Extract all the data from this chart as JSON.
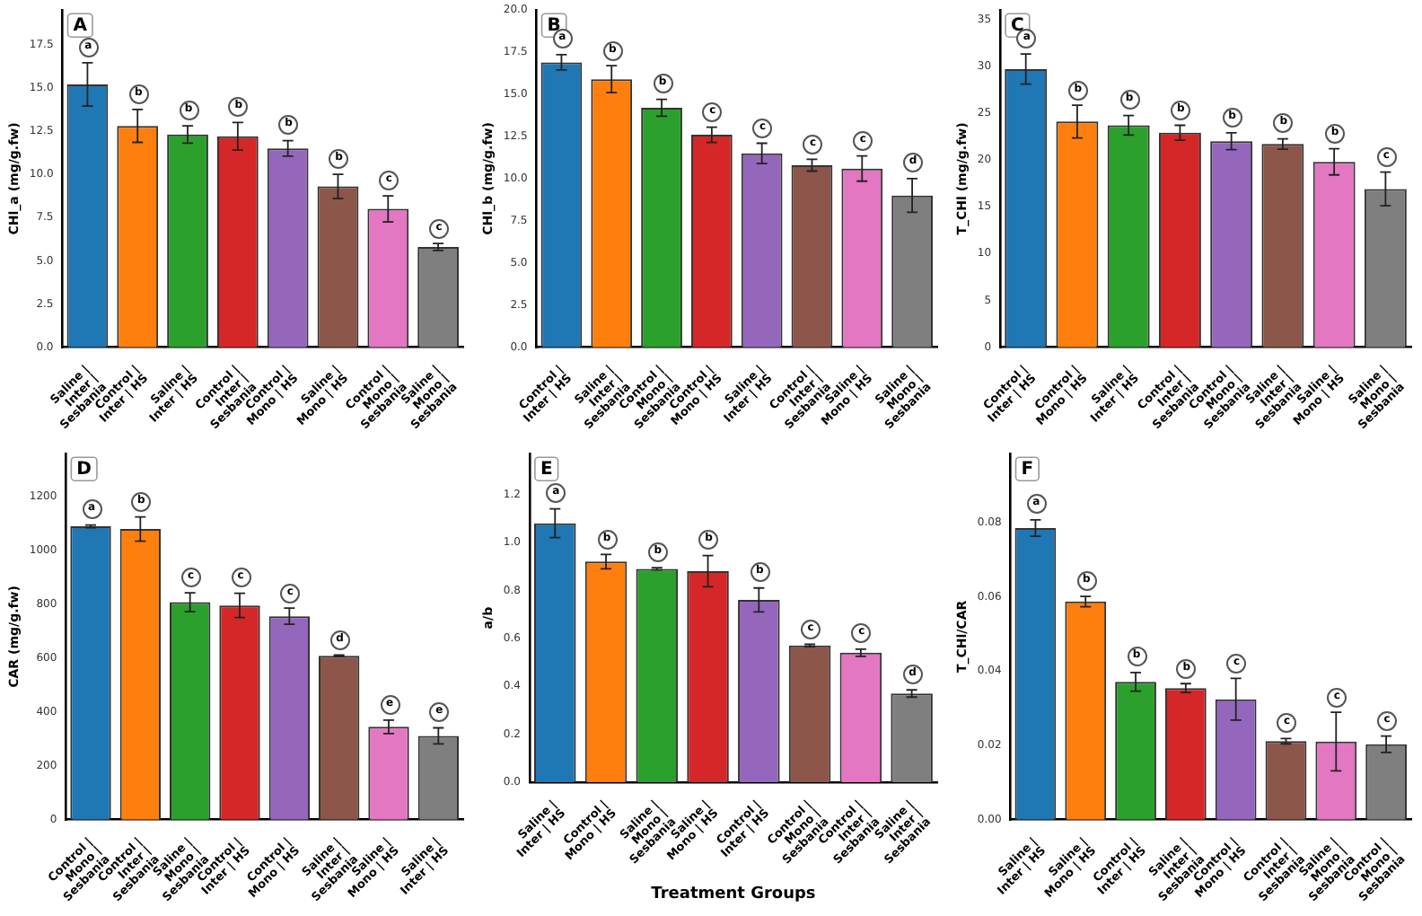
{
  "chart_data": [
    {
      "type": "bar",
      "title": "A",
      "ylabel": "CHl_a (mg/g.fw)",
      "categories": [
        "Saline | Inter | Sesbania",
        "Control | Inter | HS",
        "Saline | Inter | HS",
        "Control | Inter | Sesbania",
        "Control | Mono | HS",
        "Saline | Mono | HS",
        "Control | Mono | Sesbania",
        "Saline | Mono | Sesbania"
      ],
      "values": [
        15.2,
        12.8,
        12.3,
        12.2,
        11.5,
        9.3,
        8.0,
        5.8
      ],
      "errors": [
        1.25,
        0.95,
        0.5,
        0.8,
        0.45,
        0.7,
        0.75,
        0.2
      ],
      "colors": [
        "#1f77b4",
        "#ff7f0e",
        "#2ca02c",
        "#d62728",
        "#9467bd",
        "#8c564b",
        "#e377c2",
        "#7f7f7f"
      ],
      "ylim": [
        0,
        19.5
      ],
      "yticks": [
        {
          "value": 0,
          "label": "0.0"
        },
        {
          "value": 2.5,
          "label": "2.5"
        },
        {
          "value": 5,
          "label": "5.0"
        },
        {
          "value": 7.5,
          "label": "7.5"
        },
        {
          "value": 10,
          "label": "10.0"
        },
        {
          "value": 12.5,
          "label": "12.5"
        },
        {
          "value": 15,
          "label": "15.0"
        },
        {
          "value": 17.5,
          "label": "17.5"
        }
      ],
      "annotations": [
        "a",
        "b",
        "b",
        "b",
        "b",
        "b",
        "c",
        "c"
      ]
    },
    {
      "type": "bar",
      "title": "B",
      "ylabel": "CHl_b (mg/g.fw)",
      "categories": [
        "Control | Inter | HS",
        "Saline | Inter | Sesbania",
        "Control | Mono | Sesbania",
        "Control | Mono | HS",
        "Saline | Inter | HS",
        "Control | Inter | Sesbania",
        "Saline | Mono | HS",
        "Saline | Mono | Sesbania"
      ],
      "values": [
        16.9,
        15.9,
        14.2,
        12.6,
        11.5,
        10.8,
        10.6,
        9.0
      ],
      "errors": [
        0.45,
        0.8,
        0.5,
        0.45,
        0.6,
        0.35,
        0.75,
        1.0
      ],
      "colors": [
        "#1f77b4",
        "#ff7f0e",
        "#2ca02c",
        "#d62728",
        "#9467bd",
        "#8c564b",
        "#e377c2",
        "#7f7f7f"
      ],
      "ylim": [
        0,
        20
      ],
      "yticks": [
        {
          "value": 0,
          "label": "0.0"
        },
        {
          "value": 2.5,
          "label": "2.5"
        },
        {
          "value": 5,
          "label": "5.0"
        },
        {
          "value": 7.5,
          "label": "7.5"
        },
        {
          "value": 10,
          "label": "10.0"
        },
        {
          "value": 12.5,
          "label": "12.5"
        },
        {
          "value": 15,
          "label": "15.0"
        },
        {
          "value": 17.5,
          "label": "17.5"
        },
        {
          "value": 20,
          "label": "20.0"
        }
      ],
      "annotations": [
        "a",
        "b",
        "b",
        "c",
        "c",
        "c",
        "c",
        "d"
      ]
    },
    {
      "type": "bar",
      "title": "C",
      "ylabel": "T_CHl (mg/g.fw)",
      "categories": [
        "Control | Inter | HS",
        "Control | Mono | HS",
        "Saline | Inter | HS",
        "Control | Inter | Sesbania",
        "Control | Mono | Sesbania",
        "Saline | Inter | Sesbania",
        "Saline | Mono | HS",
        "Saline | Mono | Sesbania"
      ],
      "values": [
        29.7,
        24.1,
        23.7,
        22.9,
        22.0,
        21.7,
        19.8,
        16.9
      ],
      "errors": [
        1.6,
        1.75,
        1.05,
        0.8,
        0.9,
        0.55,
        1.4,
        1.8
      ],
      "colors": [
        "#1f77b4",
        "#ff7f0e",
        "#2ca02c",
        "#d62728",
        "#9467bd",
        "#8c564b",
        "#e377c2",
        "#7f7f7f"
      ],
      "ylim": [
        0,
        36
      ],
      "yticks": [
        0,
        5,
        10,
        15,
        20,
        25,
        30,
        35
      ],
      "annotations": [
        "a",
        "b",
        "b",
        "b",
        "b",
        "b",
        "b",
        "c"
      ]
    },
    {
      "type": "bar",
      "title": "D",
      "ylabel": "CAR (mg/g.fw)",
      "categories": [
        "Control | Mono | Sesbania",
        "Control | Inter | Sesbania",
        "Saline | Mono | Sesbania",
        "Control | Inter | HS",
        "Control | Mono | HS",
        "Saline | Inter | Sesbania",
        "Saline | Mono | HS",
        "Saline | Inter | HS"
      ],
      "values": [
        1090,
        1080,
        808,
        796,
        756,
        609,
        345,
        311
      ],
      "errors": [
        5,
        45,
        35,
        45,
        30,
        3,
        25,
        30
      ],
      "colors": [
        "#1f77b4",
        "#ff7f0e",
        "#2ca02c",
        "#d62728",
        "#9467bd",
        "#8c564b",
        "#e377c2",
        "#7f7f7f"
      ],
      "ylim": [
        0,
        1360
      ],
      "yticks": [
        0,
        200,
        400,
        600,
        800,
        1000,
        1200
      ],
      "annotations": [
        "a",
        "b",
        "c",
        "c",
        "c",
        "d",
        "e",
        "e"
      ]
    },
    {
      "type": "bar",
      "title": "E",
      "ylabel": "a/b",
      "xlabel": "Treatment Groups",
      "categories": [
        "Saline | Inter | HS",
        "Control | Mono | HS",
        "Saline | Mono | Sesbania",
        "Saline | Mono | HS",
        "Control | Inter | HS",
        "Control | Mono | Sesbania",
        "Control | Inter | Sesbania",
        "Saline | Inter | Sesbania"
      ],
      "values": [
        1.08,
        0.92,
        0.89,
        0.88,
        0.76,
        0.57,
        0.54,
        0.37
      ],
      "errors": [
        0.06,
        0.03,
        0.005,
        0.065,
        0.05,
        0.005,
        0.015,
        0.015
      ],
      "colors": [
        "#1f77b4",
        "#ff7f0e",
        "#2ca02c",
        "#d62728",
        "#9467bd",
        "#8c564b",
        "#e377c2",
        "#7f7f7f"
      ],
      "ylim": [
        0,
        1.37
      ],
      "yticks": [
        {
          "value": 0,
          "label": "0.0"
        },
        {
          "value": 0.2,
          "label": "0.2"
        },
        {
          "value": 0.4,
          "label": "0.4"
        },
        {
          "value": 0.6,
          "label": "0.6"
        },
        {
          "value": 0.8,
          "label": "0.8"
        },
        {
          "value": 1,
          "label": "1.0"
        },
        {
          "value": 1.2,
          "label": "1.2"
        }
      ],
      "annotations": [
        "a",
        "b",
        "b",
        "b",
        "b",
        "c",
        "c",
        "d"
      ]
    },
    {
      "type": "bar",
      "title": "F",
      "ylabel": "T_CHl/CAR",
      "categories": [
        "Saline | Inter | HS",
        "Saline | Mono | HS",
        "Control | Inter | HS",
        "Saline | Inter | Sesbania",
        "Control | Mono | HS",
        "Control | Inter | Sesbania",
        "Saline | Mono | Sesbania",
        "Control | Mono | Sesbania"
      ],
      "values": [
        0.0785,
        0.0587,
        0.0371,
        0.0354,
        0.0324,
        0.0211,
        0.021,
        0.0203
      ],
      "errors": [
        0.0022,
        0.0014,
        0.0025,
        0.0012,
        0.0056,
        0.0007,
        0.0079,
        0.0022
      ],
      "colors": [
        "#1f77b4",
        "#ff7f0e",
        "#2ca02c",
        "#d62728",
        "#9467bd",
        "#8c564b",
        "#e377c2",
        "#7f7f7f"
      ],
      "ylim": [
        0,
        0.0985
      ],
      "yticks": [
        {
          "value": 0,
          "label": "0.00"
        },
        {
          "value": 0.02,
          "label": "0.02"
        },
        {
          "value": 0.04,
          "label": "0.04"
        },
        {
          "value": 0.06,
          "label": "0.06"
        },
        {
          "value": 0.08,
          "label": "0.08"
        }
      ],
      "annotations": [
        "a",
        "b",
        "b",
        "b",
        "c",
        "c",
        "c",
        "c"
      ]
    }
  ]
}
